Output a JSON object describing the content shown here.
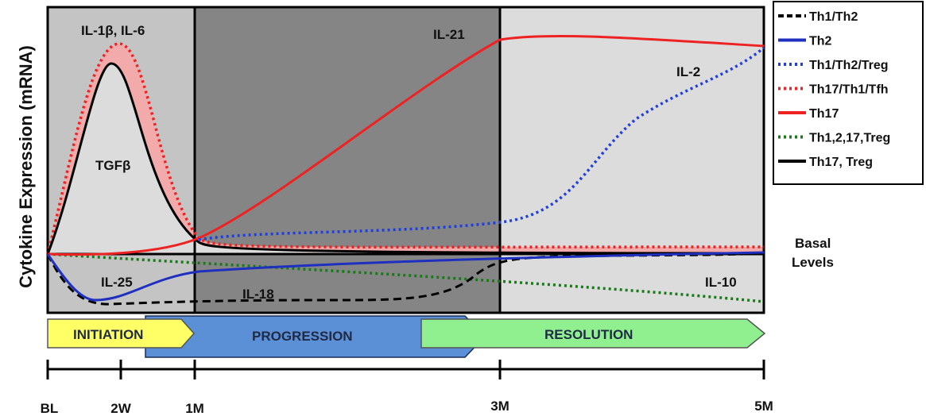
{
  "y_axis_label": "Cytokine Expression (mRNA)",
  "basal_label_line1": "Basal",
  "basal_label_line2": "Levels",
  "x_ticks": [
    "BL",
    "2W",
    "1M",
    "3M",
    "5M"
  ],
  "phases": [
    {
      "label": "INITIATION",
      "color": "#ffff66"
    },
    {
      "label": "PROGRESSION",
      "color": "#5b8fd6"
    },
    {
      "label": "RESOLUTION",
      "color": "#90f090"
    }
  ],
  "annotations": {
    "il1b_il6": "IL-1β, IL-6",
    "tgfb": "TGFβ",
    "il21": "IL-21",
    "il2": "IL-2",
    "il25": "IL-25",
    "il18": "IL-18",
    "il10": "IL-10"
  },
  "legend": [
    {
      "label": "Th1/Th2",
      "color": "#000000",
      "style": "dashed"
    },
    {
      "label": "Th2",
      "color": "#1f2fbf",
      "style": "solid"
    },
    {
      "label": "Th1/Th2/Treg",
      "color": "#1f3fe0",
      "style": "dotted"
    },
    {
      "label": "Th17/Th1/Tfh",
      "color": "#ee2222",
      "style": "dotted"
    },
    {
      "label": "Th17",
      "color": "#ee2222",
      "style": "solid"
    },
    {
      "label": "Th1,2,17,Treg",
      "color": "#1a7a1a",
      "style": "dotted"
    },
    {
      "label": "Th17, Treg",
      "color": "#000000",
      "style": "solid"
    }
  ],
  "colors": {
    "early_bg": "#c4c4c4",
    "mid_bg": "#858585",
    "late_bg": "#dcdcdc",
    "inner_peak_fill": "#dcdcdc",
    "peak_band": "#f2aaaa"
  }
}
